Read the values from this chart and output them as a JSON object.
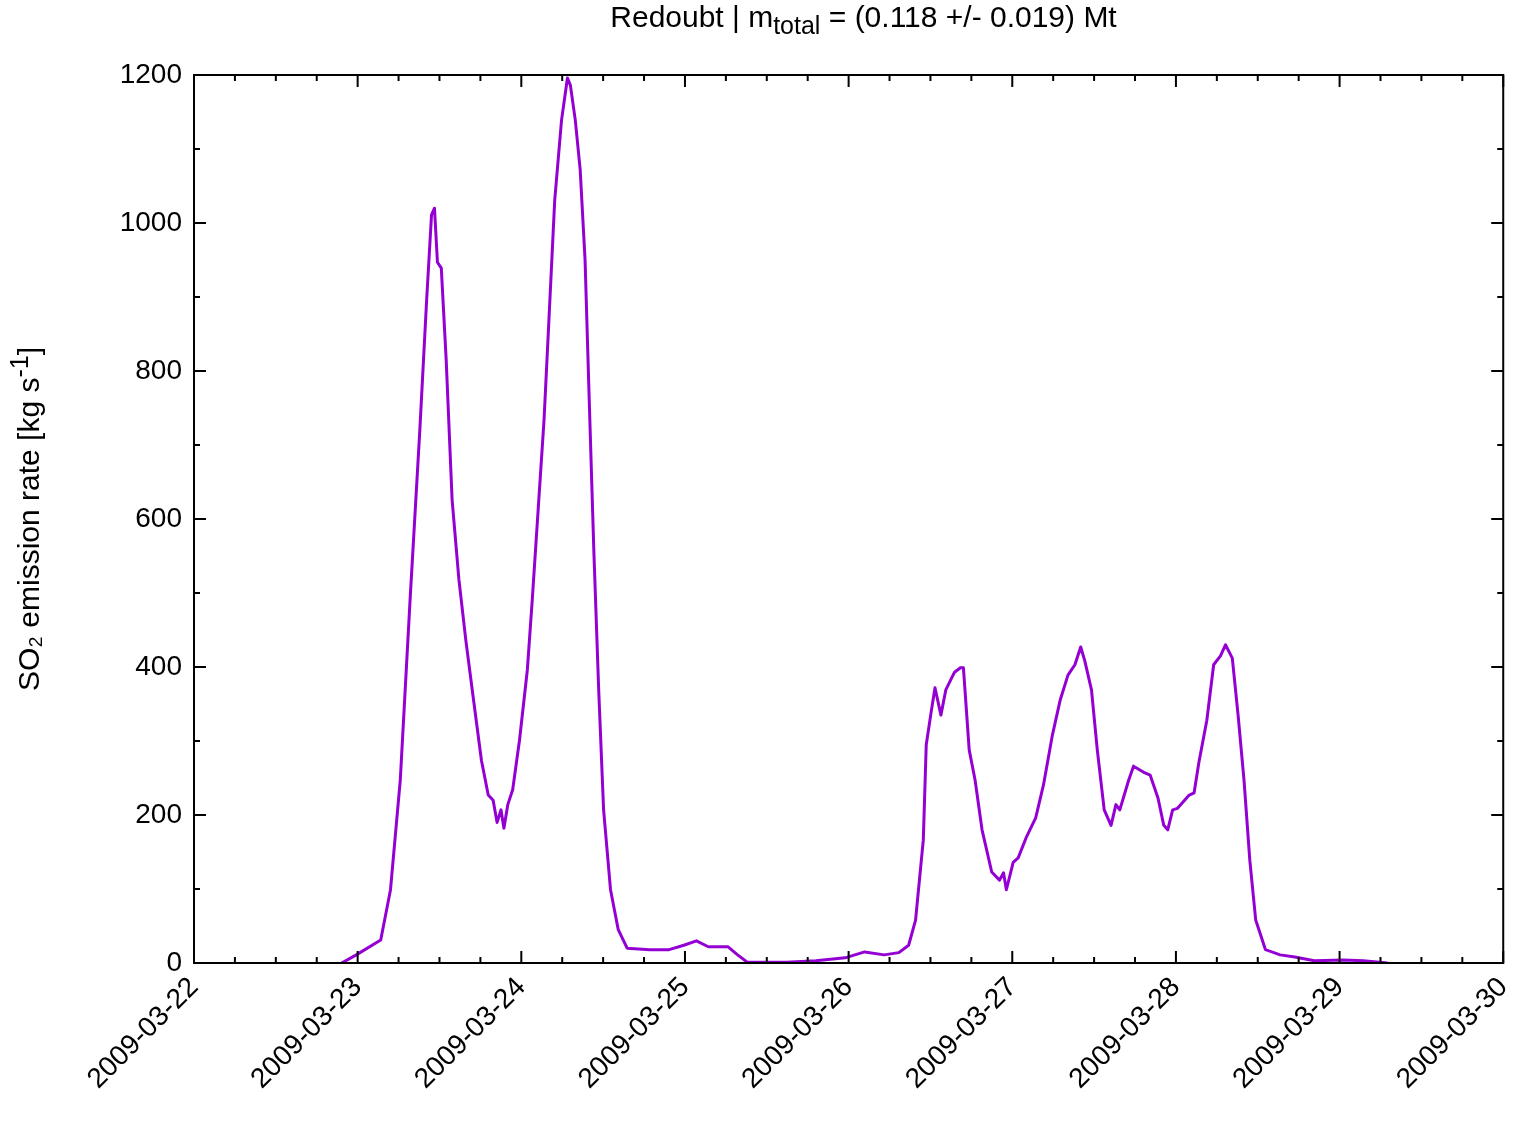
{
  "chart_data": {
    "type": "line",
    "title": "Redoubt | m$_{total}$ = (0.118 +/- 0.019) Mt",
    "ylabel": "SO₂ emission rate [kg s$^{-1}$]",
    "x": [
      "2009-03-22T21:39",
      "2009-03-22T23:48",
      "2009-03-23T03:23",
      "2009-03-23T04:49",
      "2009-03-23T06:15",
      "2009-03-23T07:41",
      "2009-03-23T09:07",
      "2009-03-23T10:07",
      "2009-03-23T10:50",
      "2009-03-23T11:16",
      "2009-03-23T11:42",
      "2009-03-23T12:16",
      "2009-03-23T12:59",
      "2009-03-23T13:51",
      "2009-03-23T14:51",
      "2009-03-23T15:52",
      "2009-03-23T17:00",
      "2009-03-23T18:09",
      "2009-03-23T19:09",
      "2009-03-23T19:52",
      "2009-03-23T20:27",
      "2009-03-23T21:01",
      "2009-03-23T21:27",
      "2009-03-23T22:01",
      "2009-03-23T22:44",
      "2009-03-23T23:44",
      "2009-03-24T00:53",
      "2009-03-24T01:36",
      "2009-03-24T02:28",
      "2009-03-24T03:20",
      "2009-03-24T04:03",
      "2009-03-24T04:54",
      "2009-03-24T05:54",
      "2009-03-24T06:46",
      "2009-03-24T07:12",
      "2009-03-24T07:55",
      "2009-03-24T08:38",
      "2009-03-24T09:21",
      "2009-03-24T09:55",
      "2009-03-24T10:38",
      "2009-03-24T11:21",
      "2009-03-24T12:04",
      "2009-03-24T13:05",
      "2009-03-24T14:13",
      "2009-03-24T15:31",
      "2009-03-24T18:49",
      "2009-03-24T21:41",
      "2009-03-24T23:50",
      "2009-03-25T01:41",
      "2009-03-25T03:25",
      "2009-03-25T06:17",
      "2009-03-25T07:43",
      "2009-03-25T09:09",
      "2009-03-25T14:53",
      "2009-03-25T19:11",
      "2009-03-25T23:29",
      "2009-03-26T02:21",
      "2009-03-26T05:13",
      "2009-03-26T07:22",
      "2009-03-26T08:48",
      "2009-03-26T09:49",
      "2009-03-26T10:57",
      "2009-03-26T11:23",
      "2009-03-26T12:06",
      "2009-03-26T12:40",
      "2009-03-26T13:32",
      "2009-03-26T14:15",
      "2009-03-26T15:32",
      "2009-03-26T16:24",
      "2009-03-26T16:50",
      "2009-03-26T17:41",
      "2009-03-26T18:33",
      "2009-03-26T19:34",
      "2009-03-26T20:59",
      "2009-03-26T22:08",
      "2009-03-26T22:43",
      "2009-03-26T23:08",
      "2009-03-27T00:08",
      "2009-03-27T00:52",
      "2009-03-27T02:01",
      "2009-03-27T03:26",
      "2009-03-27T04:35",
      "2009-03-27T05:53",
      "2009-03-27T07:01",
      "2009-03-27T08:10",
      "2009-03-27T09:11",
      "2009-03-27T10:02",
      "2009-03-27T10:37",
      "2009-03-27T11:37",
      "2009-03-27T12:28",
      "2009-03-27T13:29",
      "2009-03-27T14:29",
      "2009-03-27T15:12",
      "2009-03-27T15:46",
      "2009-03-27T17:04",
      "2009-03-27T17:47",
      "2009-03-27T19:13",
      "2009-03-27T20:13",
      "2009-03-27T21:22",
      "2009-03-27T22:13",
      "2009-03-27T22:48",
      "2009-03-27T23:31",
      "2009-03-28T00:14",
      "2009-03-28T01:57",
      "2009-03-28T02:40",
      "2009-03-28T03:23",
      "2009-03-28T04:32",
      "2009-03-28T05:32",
      "2009-03-28T06:32",
      "2009-03-28T07:16",
      "2009-03-28T08:16",
      "2009-03-28T09:07",
      "2009-03-28T09:59",
      "2009-03-28T10:50",
      "2009-03-28T11:42",
      "2009-03-28T13:08",
      "2009-03-28T15:17",
      "2009-03-28T17:26",
      "2009-03-28T20:18",
      "2009-03-29T00:37",
      "2009-03-29T03:28",
      "2009-03-29T07:03"
    ],
    "series": [
      {
        "color": "#9400d3",
        "values": [
          0,
          11,
          31,
          99,
          247,
          490,
          720,
          896,
          1011,
          1020,
          947,
          939,
          815,
          626,
          518,
          436,
          355,
          274,
          227,
          220,
          190,
          207,
          182,
          214,
          234,
          301,
          396,
          490,
          612,
          734,
          869,
          1031,
          1139,
          1196,
          1186,
          1139,
          1072,
          950,
          774,
          558,
          369,
          207,
          99,
          45,
          20,
          18,
          18,
          24,
          30,
          22,
          22,
          11,
          1,
          1,
          3,
          7,
          15,
          11,
          14,
          24,
          58,
          166,
          295,
          339,
          372,
          335,
          369,
          393,
          399,
          399,
          288,
          247,
          180,
          123,
          112,
          122,
          99,
          136,
          142,
          169,
          196,
          241,
          308,
          355,
          389,
          403,
          427,
          409,
          369,
          288,
          207,
          186,
          214,
          207,
          247,
          266,
          258,
          254,
          223,
          186,
          180,
          207,
          209,
          227,
          230,
          272,
          328,
          403,
          415,
          430,
          412,
          335,
          247,
          139,
          58,
          18,
          11,
          8,
          3,
          4,
          3,
          0
        ]
      }
    ],
    "marker": "none",
    "line_style": "solid",
    "xlim": [
      "2009-03-22",
      "2009-03-30"
    ],
    "xticks": [
      "2009-03-22",
      {
        "value": "2009-03-22T06:00",
        "label": null
      },
      {
        "value": "2009-03-22T12:00",
        "label": null
      },
      {
        "value": "2009-03-22T18:00",
        "label": null
      },
      "2009-03-23",
      {
        "value": "2009-03-23T06:00",
        "label": null
      },
      {
        "value": "2009-03-23T12:00",
        "label": null
      },
      {
        "value": "2009-03-23T18:00",
        "label": null
      },
      "2009-03-24",
      {
        "value": "2009-03-24T06:00",
        "label": null
      },
      {
        "value": "2009-03-24T12:00",
        "label": null
      },
      {
        "value": "2009-03-24T18:00",
        "label": null
      },
      "2009-03-25",
      {
        "value": "2009-03-25T06:00",
        "label": null
      },
      {
        "value": "2009-03-25T12:00",
        "label": null
      },
      {
        "value": "2009-03-25T18:00",
        "label": null
      },
      "2009-03-26",
      {
        "value": "2009-03-26T06:00",
        "label": null
      },
      {
        "value": "2009-03-26T12:00",
        "label": null
      },
      {
        "value": "2009-03-26T18:00",
        "label": null
      },
      "2009-03-27",
      {
        "value": "2009-03-27T06:00",
        "label": null
      },
      {
        "value": "2009-03-27T12:00",
        "label": null
      },
      {
        "value": "2009-03-27T18:00",
        "label": null
      },
      "2009-03-28",
      {
        "value": "2009-03-28T06:00",
        "label": null
      },
      {
        "value": "2009-03-28T12:00",
        "label": null
      },
      {
        "value": "2009-03-28T18:00",
        "label": null
      },
      "2009-03-29",
      {
        "value": "2009-03-29T06:00",
        "label": null
      },
      {
        "value": "2009-03-29T12:00",
        "label": null
      },
      {
        "value": "2009-03-29T18:00",
        "label": null
      },
      "2009-03-30"
    ],
    "ylim": [
      0,
      1200
    ],
    "yticks": [
      0,
      {
        "value": 100,
        "label": null
      },
      200,
      {
        "value": 300,
        "label": null
      },
      400,
      {
        "value": 500,
        "label": null
      },
      600,
      {
        "value": 700,
        "label": null
      },
      800,
      {
        "value": 900,
        "label": null
      },
      1000,
      {
        "value": 1100,
        "label": null
      },
      1200
    ]
  }
}
